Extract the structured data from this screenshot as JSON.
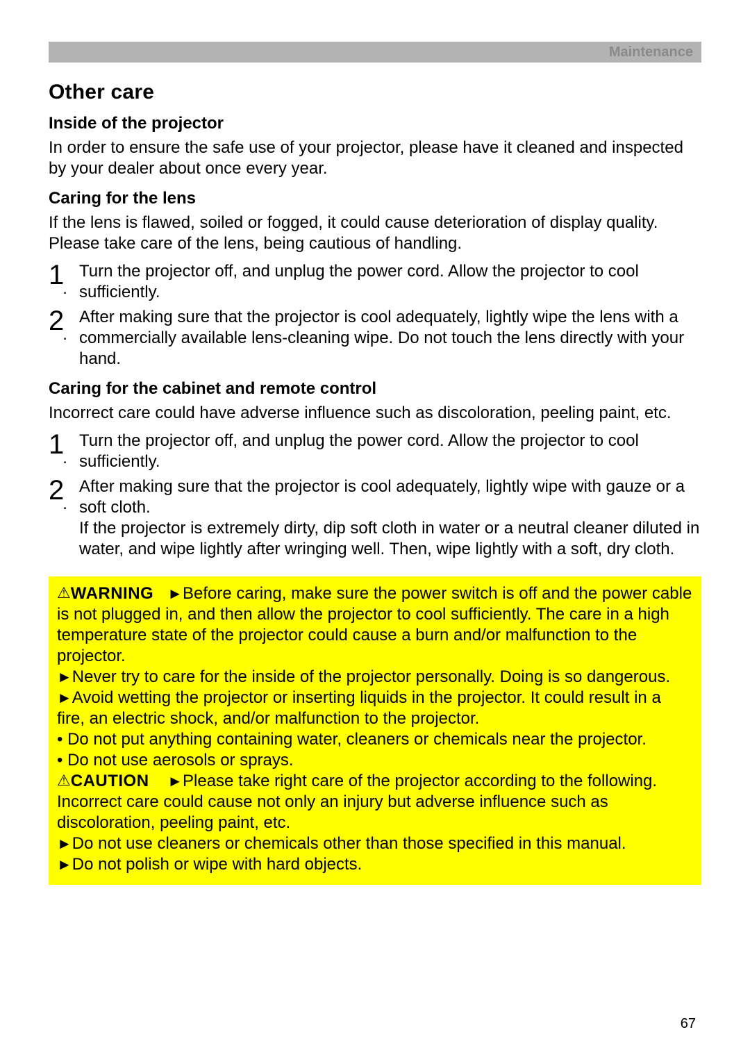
{
  "header": {
    "label": "Maintenance"
  },
  "title": "Other care",
  "s1": {
    "heading": "Inside of the projector",
    "body": "In order to ensure the safe use of your projector, please have it cleaned and inspected by your dealer about once every year."
  },
  "s2": {
    "heading": "Caring for the lens",
    "intro": "If the lens is flawed, soiled or fogged, it could cause deterioration of display quality. Please take care of the lens, being cautious of handling.",
    "step1": "Turn the projector off, and unplug the power cord. Allow the projector to cool sufficiently.",
    "step2": "After making sure that the projector is cool adequately, lightly wipe the lens with a commercially available lens-cleaning wipe. Do not touch the lens directly with your hand."
  },
  "s3": {
    "heading": "Caring for the cabinet and remote control",
    "intro": "Incorrect care could have adverse influence such as discoloration, peeling paint, etc.",
    "step1": "Turn the projector off, and unplug the power cord. Allow the projector to cool sufficiently.",
    "step2": "After making sure that the projector is cool adequately, lightly wipe with gauze or a soft cloth.",
    "step2b": "If the projector is extremely dirty, dip soft cloth in water or a neutral cleaner diluted in water, and wipe lightly after wringing well. Then, wipe lightly with a soft, dry cloth."
  },
  "warn": {
    "label1": "WARNING",
    "p1a": "Before caring, make sure the power switch is off and the power cable is not plugged in, and then allow the projector to cool sufficiently. The care in a high temperature state of the projector could cause a burn and/or malfunction to the projector.",
    "p1b": "Never try to care for the inside of the projector personally. Doing is so dangerous.",
    "p1c": "Avoid wetting the projector or inserting liquids in the projector. It could result in a fire, an electric shock, and/or malfunction to the projector.",
    "b1": "• Do not put anything containing water, cleaners or chemicals near the projector.",
    "b2": "• Do not use aerosols or sprays.",
    "label2": "CAUTION",
    "p2a": "Please take right care of the projector according to the following. Incorrect care could cause not only an injury but adverse influence such as discoloration, peeling paint, etc.",
    "p2b": "Do not use cleaners or chemicals other than those specified in this manual.",
    "p2c": "Do not polish or wipe with hard objects."
  },
  "nums": {
    "one": "1",
    "two": "2"
  },
  "glyphs": {
    "triangle": "⚠",
    "arrow": "►"
  },
  "pageNumber": "67",
  "colors": {
    "header_bg": "#b3b3b3",
    "header_text": "#8a8a8a",
    "warning_bg": "#ffff00",
    "page_bg": "#ffffff",
    "text": "#000000"
  },
  "typography": {
    "body_fontsize": 24,
    "title_fontsize": 30,
    "stepnum_fontsize": 40,
    "pagenum_fontsize": 20
  }
}
